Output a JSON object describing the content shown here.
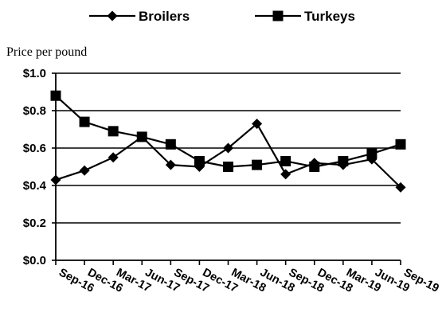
{
  "chart_data": {
    "type": "line",
    "title": "",
    "xlabel": "",
    "ylabel": "Price per pound",
    "categories": [
      "Sep-16",
      "Dec-16",
      "Mar-17",
      "Jun-17",
      "Sep-17",
      "Dec-17",
      "Mar-18",
      "Jun-18",
      "Sep-18",
      "Dec-18",
      "Mar-19",
      "Jun-19",
      "Sep-19"
    ],
    "yticks": [
      "$0.0",
      "$0.2",
      "$0.4",
      "$0.6",
      "$0.8",
      "$1.0"
    ],
    "ylim": [
      0,
      1.0
    ],
    "grid": "horizontal",
    "legend_position": "top",
    "series": [
      {
        "name": "Broilers",
        "marker": "diamond",
        "color": "#000000",
        "values": [
          0.43,
          0.48,
          0.55,
          0.66,
          0.51,
          0.5,
          0.6,
          0.73,
          0.46,
          0.52,
          0.51,
          0.54,
          0.39
        ]
      },
      {
        "name": "Turkeys",
        "marker": "square",
        "color": "#000000",
        "values": [
          0.88,
          0.74,
          0.69,
          0.66,
          0.62,
          0.53,
          0.5,
          0.51,
          0.53,
          0.5,
          0.53,
          0.57,
          0.62
        ]
      }
    ]
  }
}
